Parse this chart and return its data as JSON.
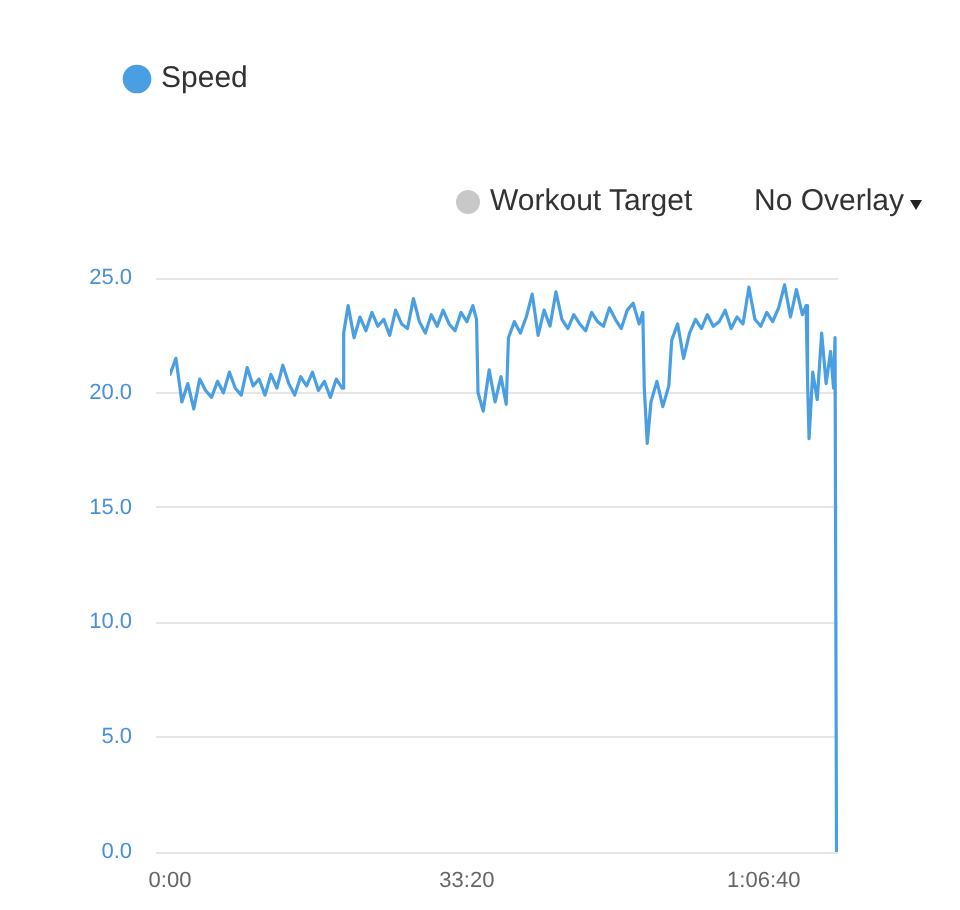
{
  "chart_data": {
    "type": "line",
    "x": [
      0,
      40,
      80,
      120,
      160,
      200,
      240,
      280,
      320,
      360,
      400,
      440,
      480,
      520,
      560,
      600,
      640,
      680,
      720,
      760,
      800,
      840,
      880,
      920,
      960,
      1000,
      1040,
      1080,
      1120,
      1160,
      1170,
      1200,
      1240,
      1280,
      1320,
      1360,
      1400,
      1440,
      1480,
      1520,
      1560,
      1600,
      1640,
      1680,
      1720,
      1760,
      1800,
      1840,
      1880,
      1920,
      1960,
      2000,
      2040,
      2065,
      2075,
      2110,
      2150,
      2190,
      2230,
      2265,
      2280,
      2320,
      2360,
      2400,
      2440,
      2480,
      2520,
      2560,
      2600,
      2640,
      2680,
      2720,
      2760,
      2800,
      2840,
      2880,
      2920,
      2960,
      3000,
      3040,
      3080,
      3120,
      3160,
      3185,
      3195,
      3215,
      3240,
      3280,
      3320,
      3360,
      3380,
      3420,
      3460,
      3500,
      3540,
      3580,
      3620,
      3660,
      3700,
      3740,
      3780,
      3820,
      3860,
      3900,
      3940,
      3980,
      4020,
      4060,
      4100,
      4140,
      4180,
      4220,
      4260,
      4285,
      4295,
      4305,
      4330,
      4360,
      4390,
      4420,
      4450,
      4470,
      4480,
      4490
    ],
    "series": [
      {
        "name": "Speed",
        "color": "#4a9fe2",
        "values": [
          20.8,
          21.5,
          19.6,
          20.4,
          19.3,
          20.6,
          20.1,
          19.8,
          20.5,
          20.0,
          20.9,
          20.2,
          19.9,
          21.1,
          20.3,
          20.6,
          19.9,
          20.8,
          20.2,
          21.2,
          20.4,
          19.9,
          20.7,
          20.3,
          20.9,
          20.1,
          20.5,
          19.8,
          20.6,
          20.2,
          22.6,
          23.8,
          22.4,
          23.3,
          22.7,
          23.5,
          22.9,
          23.2,
          22.5,
          23.6,
          23.0,
          22.8,
          24.1,
          23.1,
          22.6,
          23.4,
          22.9,
          23.6,
          23.0,
          22.7,
          23.5,
          23.1,
          23.8,
          23.2,
          20.0,
          19.2,
          21.0,
          19.6,
          20.7,
          19.5,
          22.4,
          23.1,
          22.6,
          23.3,
          24.3,
          22.5,
          23.6,
          22.9,
          24.4,
          23.2,
          22.8,
          23.4,
          23.0,
          22.7,
          23.5,
          23.1,
          22.9,
          23.7,
          23.2,
          22.8,
          23.6,
          23.9,
          23.0,
          23.5,
          20.2,
          17.8,
          19.6,
          20.5,
          19.4,
          20.3,
          22.3,
          23.0,
          21.5,
          22.6,
          23.2,
          22.8,
          23.4,
          22.9,
          23.1,
          23.6,
          22.8,
          23.3,
          23.0,
          24.6,
          23.2,
          22.9,
          23.5,
          23.1,
          23.7,
          24.7,
          23.3,
          24.5,
          23.4,
          23.8,
          20.5,
          18.0,
          20.9,
          19.7,
          22.6,
          20.4,
          21.8,
          20.2,
          22.4,
          0
        ]
      }
    ],
    "xlim": [
      0,
      4500
    ],
    "xticks": [
      {
        "value": 0,
        "label": "0:00"
      },
      {
        "value": 2000,
        "label": "33:20"
      },
      {
        "value": 4000,
        "label": "1:06:40"
      }
    ],
    "ylim": [
      0,
      25
    ],
    "yticks": [
      {
        "value": 0,
        "label": "0.0"
      },
      {
        "value": 5,
        "label": "5.0"
      },
      {
        "value": 10,
        "label": "10.0"
      },
      {
        "value": 15,
        "label": "15.0"
      },
      {
        "value": 20,
        "label": "20.0"
      },
      {
        "value": 25,
        "label": "25.0"
      }
    ],
    "grid": "y",
    "legend": "top left",
    "annotations": [
      "Workout Target",
      "No Overlay"
    ]
  }
}
